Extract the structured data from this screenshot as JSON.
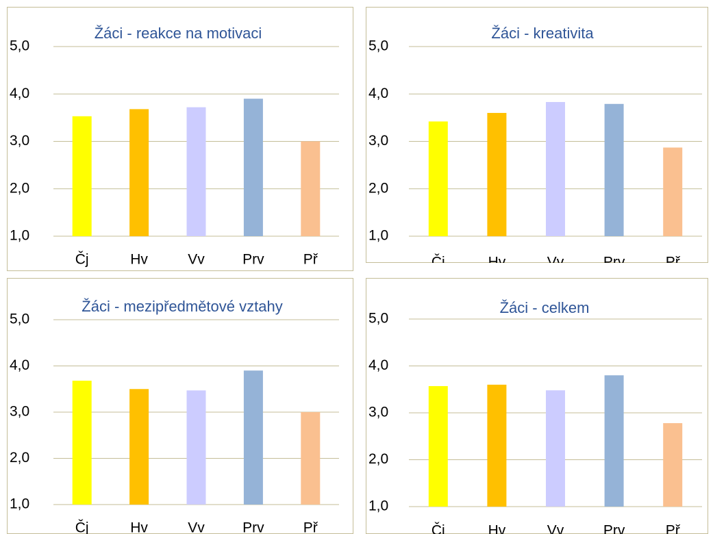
{
  "chart_data": [
    {
      "type": "bar",
      "title": "Žáci - reakce na motivaci",
      "categories": [
        "Čj",
        "Hv",
        "Vv",
        "Prv",
        "Př"
      ],
      "values": [
        3.53,
        3.68,
        3.72,
        3.9,
        3.0
      ],
      "colors": [
        "#ffff00",
        "#ffc000",
        "#ccccff",
        "#95b3d7",
        "#fac090"
      ],
      "ylim": [
        1,
        5
      ],
      "yticks": [
        {
          "value": 1,
          "label": "1,0"
        },
        {
          "value": 2,
          "label": "2,0"
        },
        {
          "value": 3,
          "label": "3,0"
        },
        {
          "value": 4,
          "label": "4,0"
        },
        {
          "value": 5,
          "label": "5,0"
        }
      ],
      "grid": true
    },
    {
      "type": "bar",
      "title": "Žáci - kreativita",
      "categories": [
        "Čj",
        "Hv",
        "Vv",
        "Prv",
        "Př"
      ],
      "values": [
        3.42,
        3.6,
        3.83,
        3.79,
        2.87
      ],
      "colors": [
        "#ffff00",
        "#ffc000",
        "#ccccff",
        "#95b3d7",
        "#fac090"
      ],
      "ylim": [
        1,
        5
      ],
      "yticks": [
        {
          "value": 1,
          "label": "1,0"
        },
        {
          "value": 2,
          "label": "2,0"
        },
        {
          "value": 3,
          "label": "3,0"
        },
        {
          "value": 4,
          "label": "4,0"
        },
        {
          "value": 5,
          "label": "5,0"
        }
      ],
      "grid": true
    },
    {
      "type": "bar",
      "title": "Žáci - mezipředmětové vztahy",
      "categories": [
        "Čj",
        "Hv",
        "Vv",
        "Prv",
        "Př"
      ],
      "values": [
        3.68,
        3.5,
        3.47,
        3.9,
        3.0
      ],
      "colors": [
        "#ffff00",
        "#ffc000",
        "#ccccff",
        "#95b3d7",
        "#fac090"
      ],
      "ylim": [
        1,
        5
      ],
      "yticks": [
        {
          "value": 1,
          "label": "1,0"
        },
        {
          "value": 2,
          "label": "2,0"
        },
        {
          "value": 3,
          "label": "3,0"
        },
        {
          "value": 4,
          "label": "4,0"
        },
        {
          "value": 5,
          "label": "5,0"
        }
      ],
      "grid": true
    },
    {
      "type": "bar",
      "title": "Žáci - celkem",
      "categories": [
        "Čj",
        "Hv",
        "Vv",
        "Prv",
        "Př"
      ],
      "values": [
        3.57,
        3.6,
        3.48,
        3.8,
        2.78
      ],
      "colors": [
        "#ffff00",
        "#ffc000",
        "#ccccff",
        "#95b3d7",
        "#fac090"
      ],
      "ylim": [
        1,
        5
      ],
      "yticks": [
        {
          "value": 1,
          "label": "1,0"
        },
        {
          "value": 2,
          "label": "2,0"
        },
        {
          "value": 3,
          "label": "3,0"
        },
        {
          "value": 4,
          "label": "4,0"
        },
        {
          "value": 5,
          "label": "5,0"
        }
      ],
      "grid": true
    }
  ]
}
